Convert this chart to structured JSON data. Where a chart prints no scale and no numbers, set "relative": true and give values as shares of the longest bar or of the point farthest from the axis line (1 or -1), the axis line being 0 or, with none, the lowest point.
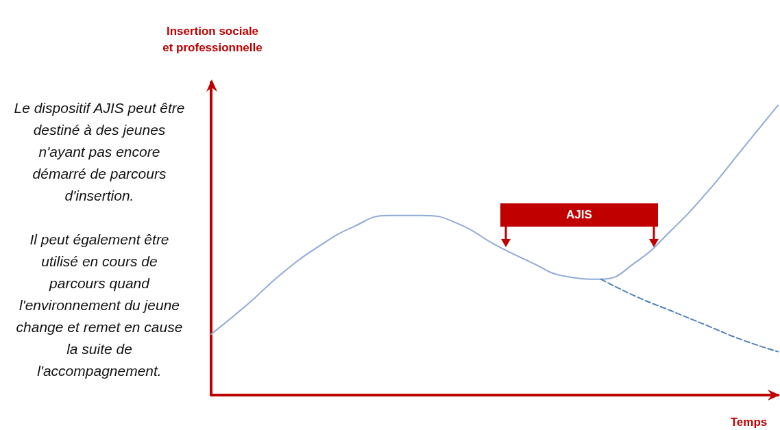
{
  "chart_data": {
    "type": "line",
    "relative": true,
    "ylabel": "Insertion sociale et professionnelle",
    "xlabel": "Temps",
    "marker": "none",
    "categories": [
      null,
      null,
      null,
      null,
      null,
      null,
      null,
      null,
      null,
      null,
      null,
      null,
      null,
      null,
      null,
      null,
      null
    ],
    "series": [
      {
        "color": "#8eaadb",
        "line_style": "solid",
        "values": [
          0.21,
          0.31,
          0.42,
          0.51,
          0.58,
          0.62,
          0.62,
          0.59,
          0.52,
          0.46,
          0.41,
          0.4,
          0.46,
          0.57,
          0.7,
          0.85,
          1
        ]
      },
      {
        "color": "#4f81bd",
        "line_style": "dashed",
        "values": [
          null,
          null,
          null,
          null,
          null,
          null,
          null,
          null,
          null,
          null,
          null,
          0.4,
          0.34,
          0.29,
          0.24,
          0.19,
          0.15
        ]
      }
    ],
    "annotations": [
      "Le dispositif AJIS peut être destiné à des jeunes n'ayant pas encore démarré de parcours d'insertion.",
      "Il peut également être utilisé en cours de parcours quand l'environnement du jeune change et remet en cause la suite de l'accompagnement.",
      "AJIS"
    ]
  }
}
